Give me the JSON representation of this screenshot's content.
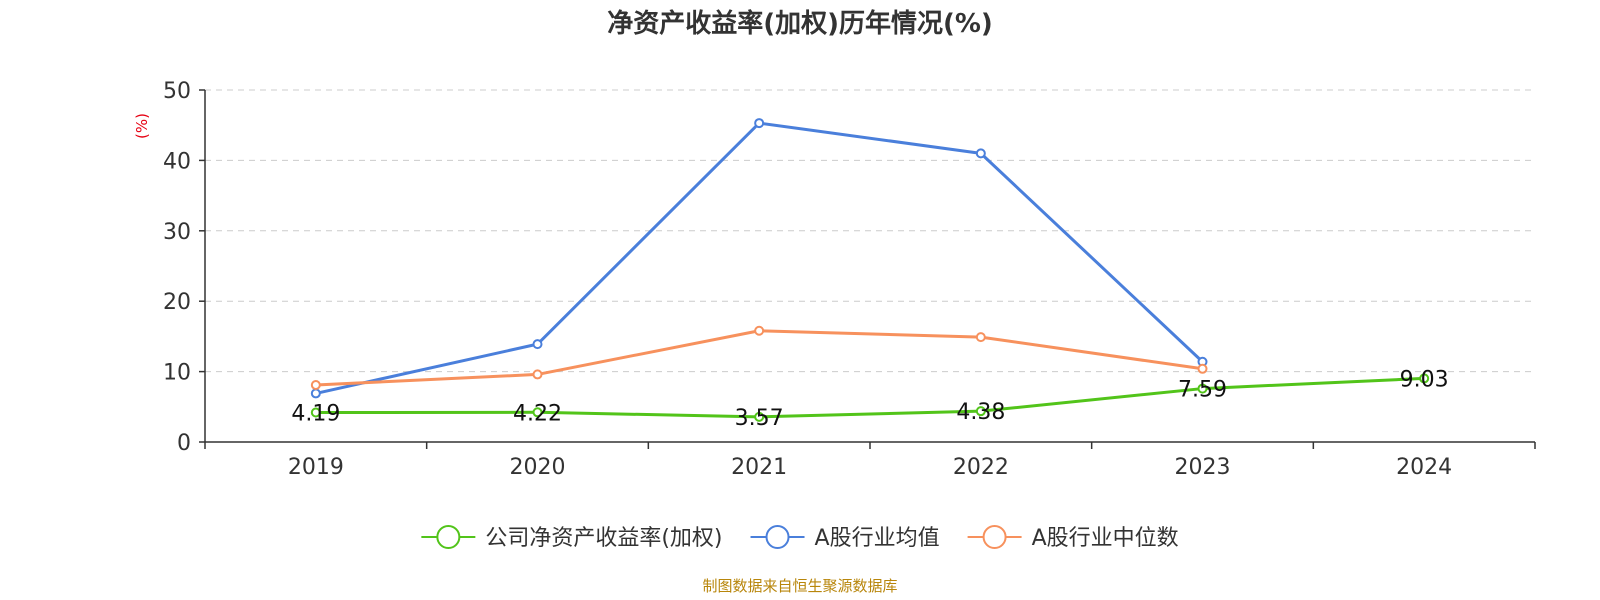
{
  "chart_data": {
    "type": "line",
    "title": "净资产收益率(加权)历年情况(%)",
    "y_unit": "(%)",
    "categories": [
      "2019",
      "2020",
      "2021",
      "2022",
      "2023",
      "2024"
    ],
    "ylim": [
      0,
      50
    ],
    "yticks": [
      0,
      10,
      20,
      30,
      40,
      50
    ],
    "grid": true,
    "legend_position": "bottom",
    "series": [
      {
        "name": "公司净资产收益率(加权)",
        "color": "#52c41a",
        "values": [
          4.19,
          4.22,
          3.57,
          4.38,
          7.59,
          9.03
        ],
        "labels": [
          "4.19",
          "4.22",
          "3.57",
          "4.38",
          "7.59",
          "9.03"
        ]
      },
      {
        "name": "A股行业均值",
        "color": "#4a7fdb",
        "values": [
          6.9,
          13.9,
          45.3,
          41.0,
          11.4,
          null
        ]
      },
      {
        "name": "A股行业中位数",
        "color": "#f7915d",
        "values": [
          8.1,
          9.6,
          15.8,
          14.9,
          10.4,
          null
        ]
      }
    ]
  },
  "colors": {
    "unit_label": "#e60012",
    "source": "#b8860b",
    "grid": "#cccccc",
    "axis": "#333333"
  },
  "source": "制图数据来自恒生聚源数据库"
}
